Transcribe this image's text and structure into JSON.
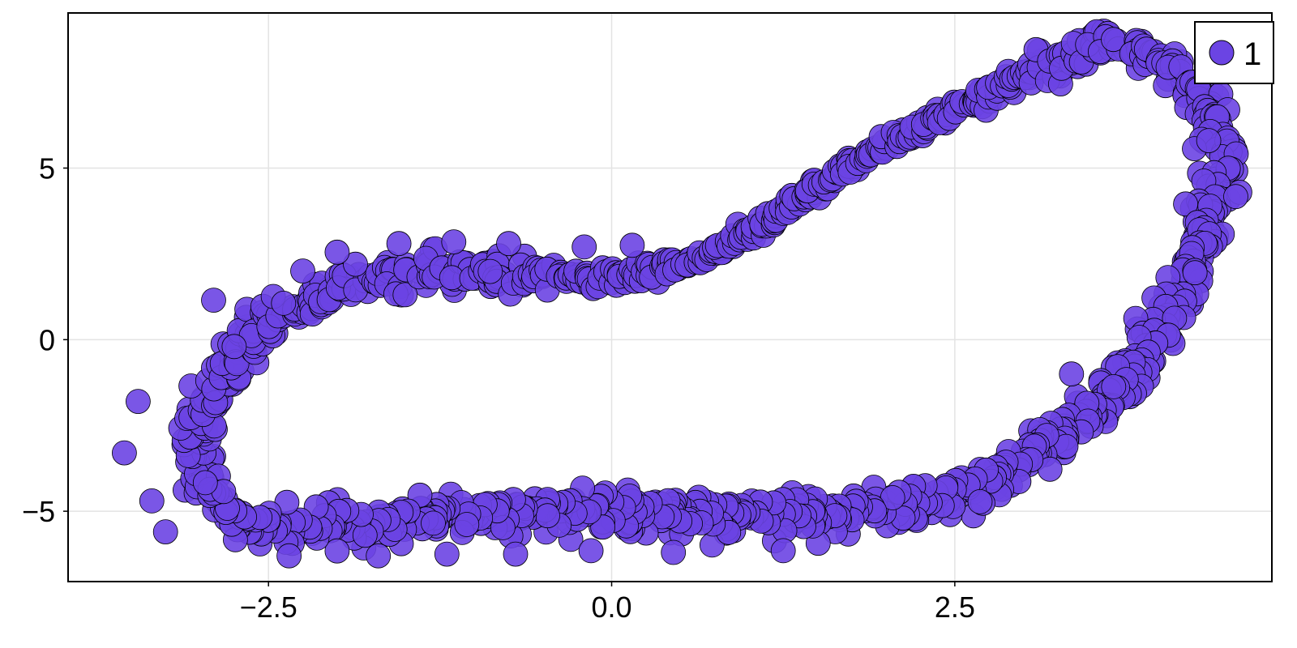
{
  "chart_data": {
    "type": "scatter",
    "title": "",
    "xlabel": "",
    "ylabel": "",
    "xlim": [
      -3.96,
      4.81
    ],
    "ylim": [
      -7.05,
      9.52
    ],
    "x_ticks": [
      -2.5,
      0.0,
      2.5
    ],
    "x_tick_labels": [
      "−2.5",
      "0.0",
      "2.5"
    ],
    "y_ticks": [
      -5,
      0,
      5
    ],
    "y_tick_labels": [
      "−5",
      "0",
      "5"
    ],
    "grid": true,
    "legend": {
      "position": "top-right",
      "entries": [
        "1"
      ]
    },
    "marker_color": "#6B44E3",
    "marker_edge_color": "#000000",
    "series": [
      {
        "name": "1",
        "shape": "noisy closed loop (≈1000 points)",
        "path": [
          [
            -2.95,
            -4.5
          ],
          [
            -3.0,
            -3.5
          ],
          [
            -3.0,
            -2.5
          ],
          [
            -2.9,
            -1.5
          ],
          [
            -2.75,
            -0.6
          ],
          [
            -2.55,
            0.4
          ],
          [
            -2.2,
            1.2
          ],
          [
            -1.8,
            1.8
          ],
          [
            -1.2,
            2.05
          ],
          [
            -0.6,
            1.9
          ],
          [
            0.0,
            1.8
          ],
          [
            0.6,
            2.25
          ],
          [
            1.1,
            3.3
          ],
          [
            1.6,
            4.7
          ],
          [
            2.1,
            5.9
          ],
          [
            2.6,
            6.9
          ],
          [
            3.1,
            7.9
          ],
          [
            3.6,
            8.6
          ],
          [
            4.0,
            8.2
          ],
          [
            4.35,
            7.0
          ],
          [
            4.45,
            5.5
          ],
          [
            4.4,
            4.0
          ],
          [
            4.2,
            2.0
          ],
          [
            4.0,
            0.5
          ],
          [
            3.8,
            -0.8
          ],
          [
            3.6,
            -1.8
          ],
          [
            3.3,
            -2.8
          ],
          [
            3.0,
            -3.6
          ],
          [
            2.6,
            -4.4
          ],
          [
            2.0,
            -4.9
          ],
          [
            1.4,
            -5.1
          ],
          [
            0.8,
            -5.2
          ],
          [
            0.2,
            -5.0
          ],
          [
            -0.4,
            -5.0
          ],
          [
            -1.0,
            -5.1
          ],
          [
            -1.6,
            -5.3
          ],
          [
            -2.2,
            -5.5
          ],
          [
            -2.6,
            -5.6
          ],
          [
            -2.95,
            -4.5
          ]
        ],
        "outliers": [
          [
            -3.55,
            -3.3
          ],
          [
            -3.35,
            -4.7
          ],
          [
            -3.25,
            -5.6
          ],
          [
            -3.45,
            -1.8
          ],
          [
            -2.9,
            1.15
          ],
          [
            -2.25,
            2.0
          ],
          [
            -2.0,
            2.55
          ],
          [
            -1.55,
            2.8
          ],
          [
            -1.15,
            2.85
          ],
          [
            -0.75,
            2.8
          ],
          [
            -0.2,
            2.7
          ],
          [
            0.15,
            2.75
          ],
          [
            -2.75,
            -0.2
          ],
          [
            -2.35,
            -6.3
          ],
          [
            -1.7,
            -6.3
          ],
          [
            -1.2,
            -6.25
          ],
          [
            -0.7,
            -6.25
          ],
          [
            -0.15,
            -6.15
          ],
          [
            0.45,
            -6.2
          ],
          [
            1.25,
            -6.15
          ],
          [
            4.35,
            5.8
          ],
          [
            4.25,
            1.95
          ],
          [
            3.35,
            -1.0
          ]
        ]
      }
    ]
  }
}
